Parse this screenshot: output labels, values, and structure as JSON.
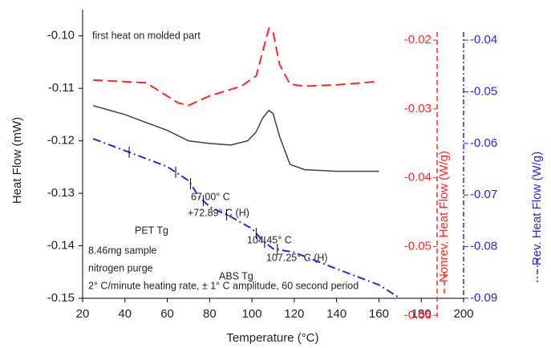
{
  "chart_data": {
    "type": "line",
    "xlabel": "Temperature (°C)",
    "ylabel": "Heat Flow (mW)",
    "y2label": "Nonrev. Heat Flow (W/g)",
    "y3label": "Rev. Heat Flow (W/g)",
    "annotations": [
      "first heat on molded part",
      "67.00° C",
      "+72.89° C (H)",
      "PET Tg",
      "104.45° C",
      "107.25° C (H)",
      "ABS Tg",
      "8.46mg sample",
      "nitrogen purge",
      "2° C/minute heating rate, ± 1° C amplitude, 60 second period"
    ],
    "xlim": [
      20,
      200
    ],
    "xticks": [
      20,
      40,
      60,
      80,
      100,
      120,
      140,
      160,
      180,
      200
    ],
    "ylim": [
      -0.15,
      -0.095
    ],
    "yticks": [
      {
        "value": -0.1,
        "label": "-0.10"
      },
      -0.11,
      -0.12,
      -0.13,
      -0.14,
      -0.15
    ],
    "y2lim": [
      -0.0602,
      -0.0158
    ],
    "y2ticks": [
      -0.02,
      -0.03,
      -0.04,
      -0.05,
      -0.06
    ],
    "y3lim": [
      -0.09,
      -0.0344
    ],
    "y3ticks": [
      -0.04,
      -0.05,
      -0.06,
      -0.07,
      -0.08,
      -0.09
    ],
    "markers": [
      42,
      64,
      71,
      77,
      88,
      102,
      106,
      112
    ],
    "series": [
      {
        "name": "Heat Flow",
        "axis": "y",
        "color": "#404040",
        "dash": "none",
        "x": [
          25,
          40,
          60,
          70,
          80,
          90,
          98,
          102,
          105,
          108,
          110,
          113,
          118,
          125,
          140,
          160
        ],
        "values": [
          -0.1133,
          -0.115,
          -0.118,
          -0.12,
          -0.1205,
          -0.1208,
          -0.12,
          -0.1183,
          -0.1157,
          -0.1142,
          -0.1148,
          -0.1191,
          -0.1245,
          -0.1255,
          -0.1258,
          -0.1258
        ]
      },
      {
        "name": "Nonrev. Heat Flow",
        "axis": "y2",
        "color": "#ff2a2a",
        "dash": "12,6",
        "x": [
          25,
          50,
          65,
          70,
          80,
          95,
          102,
          106,
          108,
          110,
          113,
          118,
          125,
          140,
          160
        ],
        "values": [
          -0.0258,
          -0.0262,
          -0.0291,
          -0.0295,
          -0.0281,
          -0.0267,
          -0.0252,
          -0.0206,
          -0.0183,
          -0.0188,
          -0.0235,
          -0.0264,
          -0.0267,
          -0.0265,
          -0.026
        ]
      },
      {
        "name": "Rev. Heat Flow",
        "axis": "y3",
        "color": "#2a2ad0",
        "dash": "10,4,2,4",
        "x": [
          25,
          40,
          60,
          70,
          75,
          80,
          90,
          100,
          105,
          110,
          120,
          140,
          160,
          170
        ],
        "values": [
          -0.0591,
          -0.0614,
          -0.0645,
          -0.0672,
          -0.0703,
          -0.0723,
          -0.0742,
          -0.0765,
          -0.0788,
          -0.0804,
          -0.0811,
          -0.0843,
          -0.0874,
          -0.09
        ]
      }
    ]
  }
}
